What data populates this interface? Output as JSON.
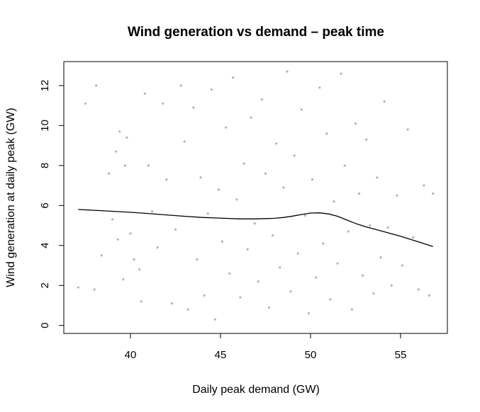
{
  "chart_data": {
    "type": "scatter",
    "title": "Wind generation vs demand – peak time",
    "xlabel": "Daily peak demand (GW)",
    "ylabel": "Wind generation at daily peak (GW)",
    "xlim": [
      36.3,
      57.6
    ],
    "ylim": [
      -0.4,
      13.2
    ],
    "xticks": [
      40,
      45,
      50,
      55
    ],
    "yticks": [
      0,
      2,
      4,
      6,
      8,
      10,
      12
    ],
    "point_color": "#b3b3b3",
    "line_color": "#000000",
    "grid": false,
    "series": [
      {
        "type": "scatter",
        "x": [
          37.1,
          37.5,
          38.0,
          38.1,
          38.4,
          38.8,
          39.0,
          39.2,
          39.3,
          39.4,
          39.6,
          39.7,
          39.8,
          40.0,
          40.2,
          40.5,
          40.6,
          40.8,
          41.0,
          41.2,
          41.5,
          41.8,
          42.0,
          42.3,
          42.5,
          42.8,
          43.0,
          43.2,
          43.5,
          43.7,
          43.9,
          44.1,
          44.3,
          44.5,
          44.7,
          44.9,
          45.1,
          45.3,
          45.5,
          45.7,
          45.9,
          46.1,
          46.3,
          46.5,
          46.7,
          46.9,
          47.1,
          47.3,
          47.5,
          47.7,
          47.9,
          48.1,
          48.3,
          48.5,
          48.7,
          48.9,
          49.1,
          49.3,
          49.5,
          49.7,
          49.9,
          50.1,
          50.3,
          50.5,
          50.7,
          50.9,
          51.1,
          51.3,
          51.5,
          51.7,
          51.9,
          52.1,
          52.3,
          52.5,
          52.7,
          52.9,
          53.1,
          53.3,
          53.5,
          53.7,
          53.9,
          54.1,
          54.3,
          54.5,
          54.8,
          55.1,
          55.4,
          55.7,
          56.0,
          56.3,
          56.6,
          56.8
        ],
        "y": [
          1.9,
          11.1,
          1.8,
          12.0,
          3.5,
          7.6,
          5.3,
          8.7,
          4.3,
          9.7,
          2.3,
          8.0,
          9.4,
          4.6,
          3.3,
          2.8,
          1.2,
          11.6,
          8.0,
          5.7,
          3.9,
          11.1,
          7.3,
          1.1,
          4.8,
          12.0,
          9.2,
          0.8,
          10.9,
          3.3,
          7.4,
          1.5,
          5.6,
          11.8,
          0.3,
          6.8,
          4.2,
          9.9,
          2.6,
          12.4,
          6.3,
          1.4,
          8.1,
          3.8,
          10.4,
          5.1,
          2.2,
          11.3,
          7.6,
          0.9,
          4.5,
          9.1,
          2.9,
          6.9,
          12.7,
          1.7,
          8.5,
          3.6,
          10.8,
          5.5,
          0.6,
          7.3,
          2.4,
          11.9,
          4.1,
          9.6,
          1.3,
          6.2,
          3.1,
          12.6,
          8.0,
          4.7,
          0.8,
          10.1,
          6.6,
          2.5,
          9.3,
          5.0,
          1.6,
          7.4,
          3.4,
          11.2,
          4.9,
          2.0,
          6.5,
          3.0,
          9.8,
          4.4,
          1.8,
          7.0,
          1.5,
          6.6
        ]
      },
      {
        "type": "line",
        "name": "",
        "x": [
          37.1,
          38.0,
          39.0,
          40.0,
          41.0,
          42.0,
          43.0,
          44.0,
          45.0,
          46.0,
          47.0,
          48.0,
          48.5,
          49.0,
          49.5,
          50.0,
          50.5,
          51.0,
          51.5,
          52.0,
          52.5,
          53.0,
          54.0,
          55.0,
          56.0,
          56.8
        ],
        "y": [
          5.8,
          5.76,
          5.71,
          5.66,
          5.6,
          5.53,
          5.46,
          5.4,
          5.37,
          5.33,
          5.33,
          5.36,
          5.4,
          5.47,
          5.55,
          5.62,
          5.63,
          5.58,
          5.46,
          5.28,
          5.1,
          4.95,
          4.71,
          4.46,
          4.18,
          3.95
        ]
      }
    ]
  }
}
